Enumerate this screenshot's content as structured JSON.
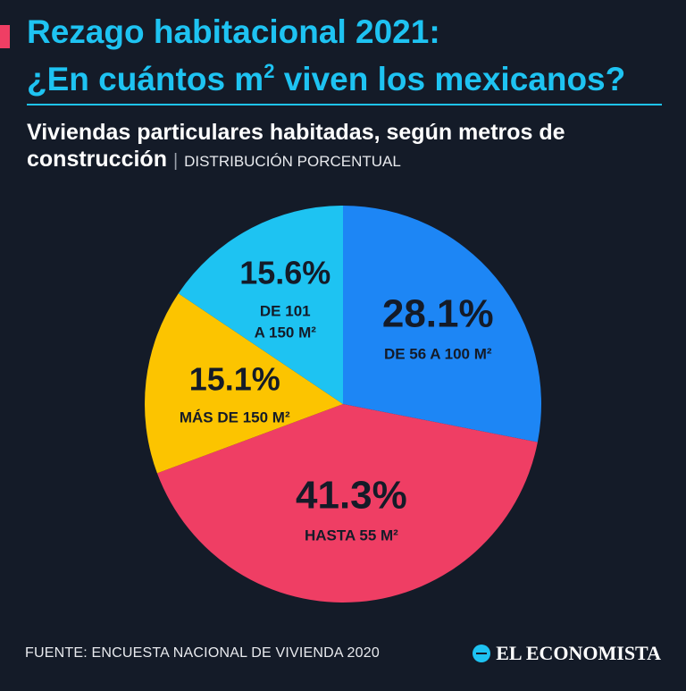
{
  "header": {
    "title_line1": "Rezago habitacional 2021:",
    "title_line2_pre": "¿En cuántos m",
    "title_line2_sup": "2",
    "title_line2_post": " viven los mexicanos?",
    "accent_color": "#ef3e64",
    "title_color": "#1ec3f2"
  },
  "subtitle": {
    "line1": "Viviendas particulares habitadas, según metros de",
    "line2_bold": "construcción",
    "separator": "|",
    "line2_light": "DISTRIBUCIÓN PORCENTUAL"
  },
  "chart_data": {
    "type": "pie",
    "unit": "%",
    "start_angle_deg": 0,
    "direction": "clockwise",
    "slices": [
      {
        "label": "DE 56 A 100 M²",
        "value": 28.1,
        "value_label": "28.1%",
        "color": "#1d86f5"
      },
      {
        "label": "HASTA 55 M²",
        "value": 41.3,
        "value_label": "41.3%",
        "color": "#ef3e64"
      },
      {
        "label": "MÁS DE 150 M²",
        "value": 15.1,
        "value_label": "15.1%",
        "color": "#fcc400"
      },
      {
        "label_lines": [
          "DE 101",
          "A 150 M²"
        ],
        "value": 15.6,
        "value_label": "15.6%",
        "color": "#1ec3f2"
      }
    ]
  },
  "footer": {
    "source": "FUENTE: ENCUESTA NACIONAL DE VIVIENDA 2020",
    "brand": "EL ECONOMISTA"
  }
}
